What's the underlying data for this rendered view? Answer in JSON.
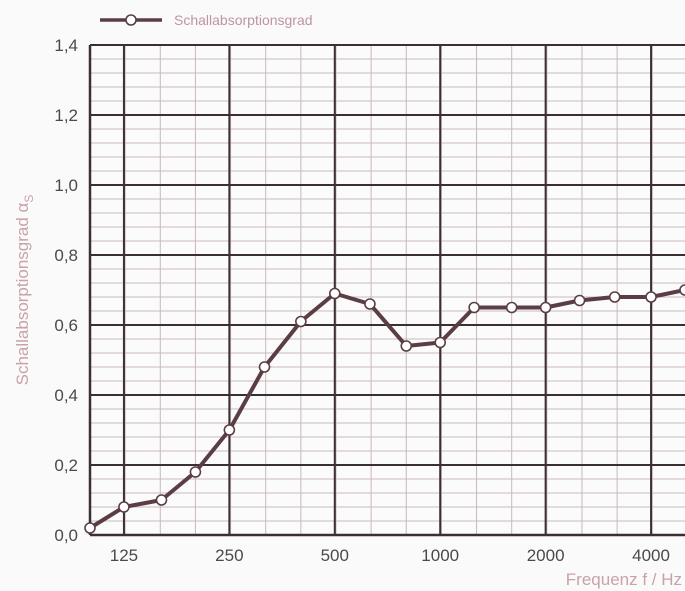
{
  "chart_data": {
    "type": "line",
    "xlabel": "Frequenz f / Hz",
    "ylabel": "Schallabsorptionsgrad α",
    "ylabel_subscript": "S",
    "ylim": [
      0,
      1.4
    ],
    "x_scale": "log2",
    "xlim": [
      100,
      5000
    ],
    "x_tick_labels": [
      "125",
      "250",
      "500",
      "1000",
      "2000",
      "4000"
    ],
    "x_tick_values": [
      125,
      250,
      500,
      1000,
      2000,
      4000
    ],
    "y_tick_labels": [
      "0,0",
      "0,2",
      "0,4",
      "0,6",
      "0,8",
      "1,0",
      "1,2",
      "1,4"
    ],
    "y_tick_values": [
      0,
      0.2,
      0.4,
      0.6,
      0.8,
      1.0,
      1.2,
      1.4
    ],
    "grid": true,
    "legend_position": "top-left",
    "series": [
      {
        "name": "Schallabsorptionsgrad",
        "color": "#5a3e44",
        "x": [
          100,
          125,
          160,
          200,
          250,
          315,
          400,
          500,
          630,
          800,
          1000,
          1250,
          1600,
          2000,
          2500,
          3150,
          4000,
          5000
        ],
        "y": [
          0.02,
          0.08,
          0.1,
          0.18,
          0.3,
          0.48,
          0.61,
          0.69,
          0.66,
          0.54,
          0.55,
          0.65,
          0.65,
          0.65,
          0.67,
          0.68,
          0.68,
          0.7
        ]
      }
    ]
  },
  "colors": {
    "major_grid": "#3c2f33",
    "minor_grid": "#c9b8bc",
    "line": "#5a3e44",
    "marker_fill": "#ffffff"
  }
}
